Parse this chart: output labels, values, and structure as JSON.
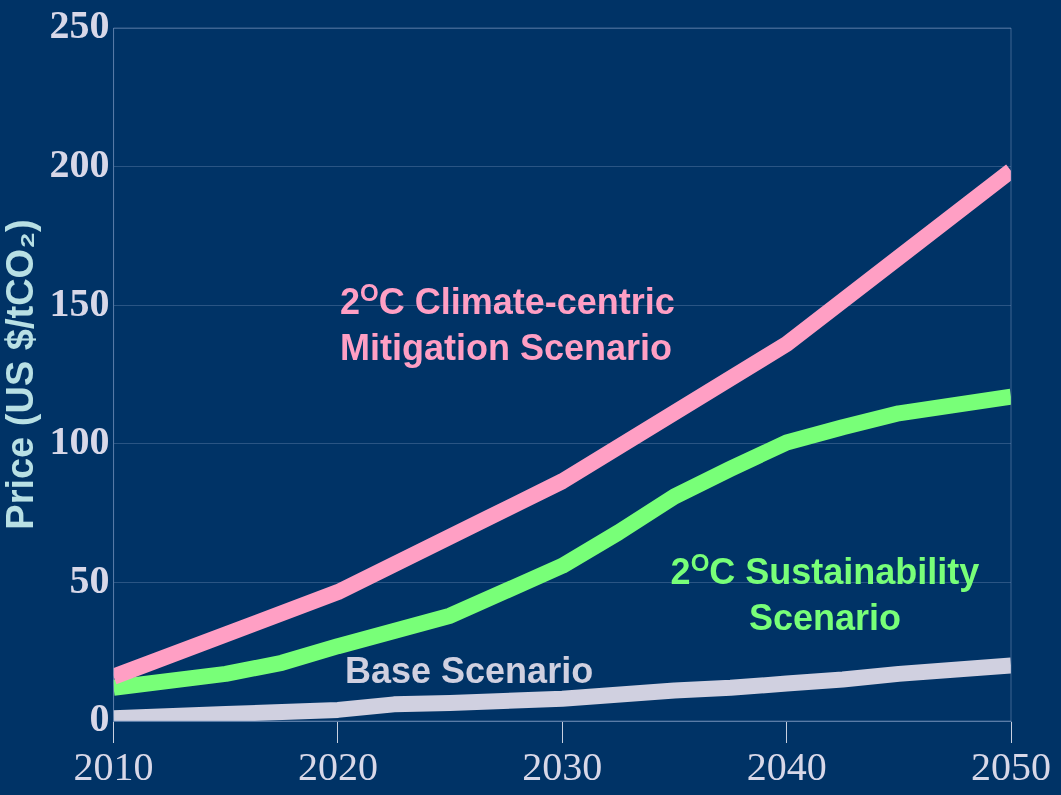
{
  "chart_data": {
    "type": "line",
    "ylabel": "Price (US $/tCO₂)",
    "xlim": [
      2010,
      2050
    ],
    "xticks": [
      2010,
      2020,
      2030,
      2040,
      2050
    ],
    "ylim": [
      0,
      250
    ],
    "yticks": [
      0,
      50,
      100,
      150,
      200,
      250
    ],
    "grid": "y",
    "legend": false,
    "marker": "none",
    "line_style": "solid",
    "series": [
      {
        "name": "2$^{O}$C Climate-centric Mitigation Scenario",
        "color": "#ff9fc4",
        "x": [
          2010,
          2020,
          2030,
          2040,
          2050
        ],
        "values": [
          16,
          46.5,
          86.5,
          136,
          198.5
        ]
      },
      {
        "name": "2$^{O}$C Sustainability Scenario",
        "color": "#78ff78",
        "x": [
          2010,
          2015,
          2017.5,
          2020,
          2025,
          2030,
          2032.5,
          2035,
          2037.5,
          2040,
          2042.5,
          2045,
          2050
        ],
        "values": [
          12,
          17,
          21,
          27,
          38,
          56,
          68,
          81,
          91,
          100.5,
          106,
          111,
          117
        ]
      },
      {
        "name": "Base Scenario",
        "color": "#d0d0e0",
        "x": [
          2010,
          2015,
          2020,
          2022.5,
          2025,
          2030,
          2035,
          2037.5,
          2040,
          2042.5,
          2045,
          2050
        ],
        "values": [
          1,
          2.5,
          4,
          6,
          6.5,
          8,
          11,
          12,
          13.5,
          15,
          17,
          20
        ]
      }
    ]
  }
}
